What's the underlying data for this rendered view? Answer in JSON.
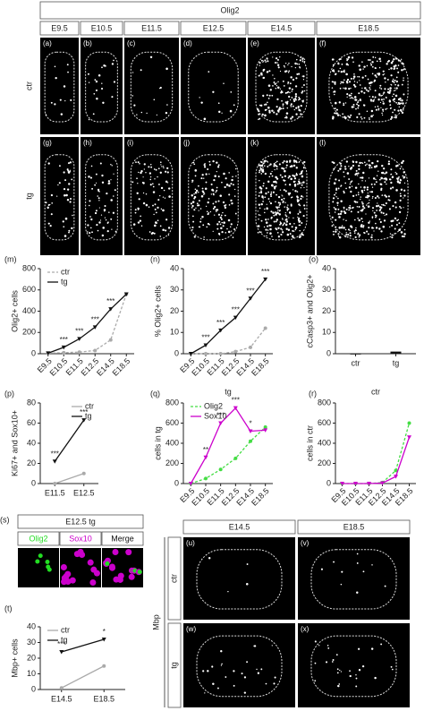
{
  "olig2_panel": {
    "title": "Olig2",
    "stages": [
      "E9.5",
      "E10.5",
      "E11.5",
      "E12.5",
      "E14.5",
      "E18.5"
    ],
    "rows": [
      "ctr",
      "tg"
    ],
    "letters": [
      [
        "(a)",
        "(b)",
        "(c)",
        "(d)",
        "(e)",
        "(f)"
      ],
      [
        "(g)",
        "(h)",
        "(i)",
        "(j)",
        "(k)",
        "(l)"
      ]
    ]
  },
  "s_panel": {
    "letter": "(s)",
    "title": "E12.5 tg",
    "channels": [
      "Olig2",
      "Sox10",
      "Merge"
    ]
  },
  "mbp_panel": {
    "marker": "Mbp",
    "stages": [
      "E14.5",
      "E18.5"
    ],
    "rows": [
      "ctr",
      "tg"
    ],
    "letters": [
      [
        "(u)",
        "(v)"
      ],
      [
        "(w)",
        "(x)"
      ]
    ]
  },
  "chart_data": [
    {
      "type": "line",
      "panel_label": "(m)",
      "ylabel": "Olig2+ cells",
      "categories": [
        "E9.5",
        "E10.5",
        "E11.5",
        "E12.5",
        "E14.5",
        "E18.5"
      ],
      "series": [
        {
          "name": "ctr",
          "color": "#aaaaaa",
          "linestyle": "dashed",
          "values": [
            5,
            10,
            15,
            30,
            130,
            560
          ]
        },
        {
          "name": "tg",
          "color": "#111111",
          "linestyle": "solid",
          "values": [
            5,
            60,
            140,
            250,
            420,
            560
          ]
        }
      ],
      "ylim": [
        0,
        800
      ],
      "yticks": [
        0,
        200,
        400,
        600,
        800
      ],
      "xtick_rotation": 45,
      "legend": "upper left",
      "annotations": [
        {
          "x": "E10.5",
          "text": "***"
        },
        {
          "x": "E11.5",
          "text": "***"
        },
        {
          "x": "E12.5",
          "text": "***"
        },
        {
          "x": "E14.5",
          "text": "***"
        }
      ]
    },
    {
      "type": "line",
      "panel_label": "(n)",
      "ylabel": "% Olig2+ cells",
      "categories": [
        "E9.5",
        "E10.5",
        "E11.5",
        "E12.5",
        "E14.5",
        "E18.5"
      ],
      "series": [
        {
          "name": "ctr",
          "color": "#aaaaaa",
          "linestyle": "dashed",
          "values": [
            0,
            0,
            0,
            1,
            3,
            12
          ]
        },
        {
          "name": "tg",
          "color": "#111111",
          "linestyle": "solid",
          "values": [
            0,
            4,
            11,
            17,
            26,
            35
          ]
        }
      ],
      "ylim": [
        0,
        40
      ],
      "yticks": [
        0,
        10,
        20,
        30,
        40
      ],
      "xtick_rotation": 45,
      "annotations": [
        {
          "x": "E10.5",
          "text": "***"
        },
        {
          "x": "E11.5",
          "text": "***"
        },
        {
          "x": "E12.5",
          "text": "***"
        },
        {
          "x": "E14.5",
          "text": "***"
        },
        {
          "x": "E18.5",
          "text": "***"
        }
      ]
    },
    {
      "type": "dot",
      "panel_label": "(o)",
      "ylabel": "cCasp3+ and Olig2+",
      "categories": [
        "ctr",
        "tg"
      ],
      "values": [
        0,
        1
      ],
      "color": "#111111",
      "ylim": [
        0,
        40
      ],
      "yticks": [
        0,
        10,
        20,
        30,
        40
      ]
    },
    {
      "type": "line",
      "panel_label": "(p)",
      "ylabel": "Ki67+ and Sox10+",
      "categories": [
        "E11.5",
        "E12.5"
      ],
      "series": [
        {
          "name": "ctr",
          "color": "#aaaaaa",
          "linestyle": "solid",
          "values": [
            0,
            10
          ]
        },
        {
          "name": "tg",
          "color": "#111111",
          "linestyle": "solid",
          "values": [
            22,
            63
          ]
        }
      ],
      "ylim": [
        0,
        80
      ],
      "yticks": [
        0,
        20,
        40,
        60,
        80
      ],
      "legend": "upper right",
      "annotations": [
        {
          "x": "E11.5",
          "text": "***"
        },
        {
          "x": "E12.5",
          "text": "***"
        }
      ]
    },
    {
      "type": "line",
      "panel_label": "(q)",
      "title": "tg",
      "ylabel": "cells in tg",
      "categories": [
        "E9.5",
        "E10.5",
        "E11.5",
        "E12.5",
        "E14.5",
        "E18.5"
      ],
      "series": [
        {
          "name": "Olig2",
          "color": "#44dd44",
          "linestyle": "dashed",
          "values": [
            0,
            50,
            140,
            250,
            420,
            560
          ]
        },
        {
          "name": "Sox10",
          "color": "#cc00cc",
          "linestyle": "solid",
          "values": [
            0,
            260,
            600,
            750,
            520,
            530
          ]
        }
      ],
      "ylim": [
        0,
        800
      ],
      "yticks": [
        0,
        200,
        400,
        600,
        800
      ],
      "xtick_rotation": 45,
      "legend": "upper left",
      "annotations": [
        {
          "x": "E10.5",
          "text": "**"
        },
        {
          "x": "E11.5",
          "text": "***"
        },
        {
          "x": "E12.5",
          "text": "***"
        },
        {
          "x": "E14.5",
          "text": "*"
        }
      ]
    },
    {
      "type": "line",
      "panel_label": "(r)",
      "title": "ctr",
      "ylabel": "cells in ctr",
      "categories": [
        "E9.5",
        "E10.5",
        "E11.5",
        "E12.5",
        "E14.5",
        "E18.5"
      ],
      "series": [
        {
          "name": "Olig2",
          "color": "#44dd44",
          "linestyle": "dashed",
          "values": [
            0,
            0,
            0,
            10,
            130,
            600
          ]
        },
        {
          "name": "Sox10",
          "color": "#cc00cc",
          "linestyle": "solid",
          "values": [
            0,
            0,
            0,
            5,
            70,
            460
          ]
        }
      ],
      "ylim": [
        0,
        800
      ],
      "yticks": [
        0,
        200,
        400,
        600,
        800
      ],
      "xtick_rotation": 45
    },
    {
      "type": "line",
      "panel_label": "(t)",
      "ylabel": "Mbp+ cells",
      "categories": [
        "E14.5",
        "E18.5"
      ],
      "series": [
        {
          "name": "ctr",
          "color": "#aaaaaa",
          "linestyle": "solid",
          "values": [
            1,
            15
          ]
        },
        {
          "name": "tg",
          "color": "#111111",
          "linestyle": "solid",
          "values": [
            24,
            32
          ]
        }
      ],
      "ylim": [
        0,
        40
      ],
      "yticks": [
        0,
        10,
        20,
        30,
        40
      ],
      "legend": "upper left",
      "annotations": [
        {
          "x": "E14.5",
          "text": "***"
        },
        {
          "x": "E18.5",
          "text": "*"
        }
      ]
    }
  ]
}
